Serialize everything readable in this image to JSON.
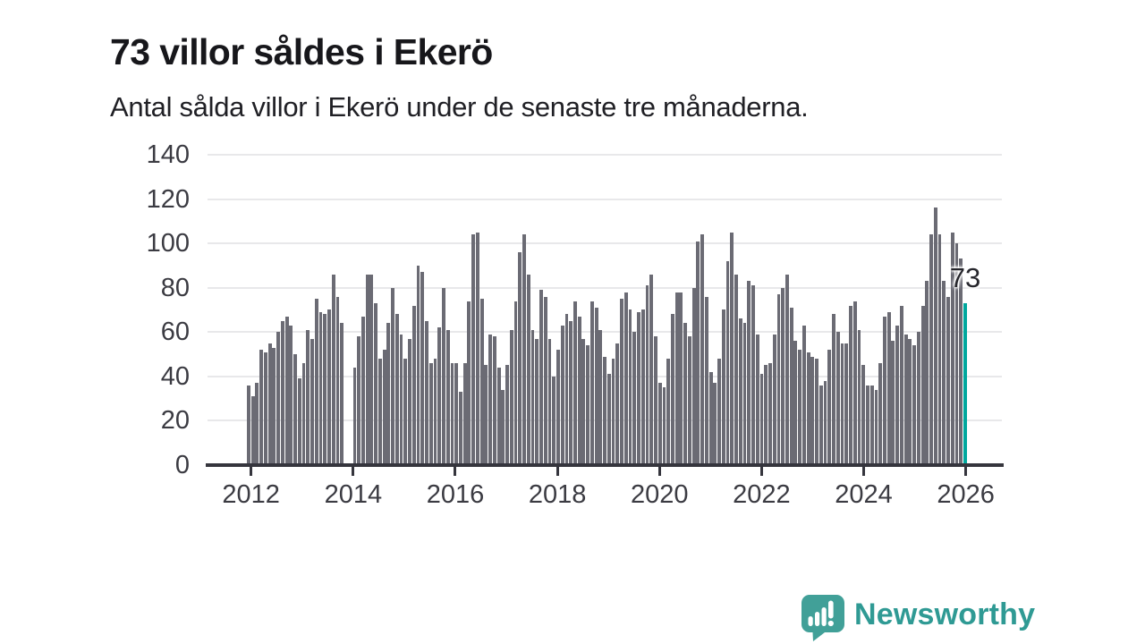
{
  "header": {
    "title": "73 villor såldes i Ekerö",
    "subtitle": "Antal sålda villor i Ekerö under de senaste tre månaderna."
  },
  "chart_data": {
    "type": "bar",
    "title": "73 villor såldes i Ekerö",
    "subtitle": "Antal sålda villor i Ekerö under de senaste tre månaderna.",
    "x_frequency": "monthly",
    "x_range_years": [
      2012,
      2026
    ],
    "values": [
      36,
      31,
      37,
      52,
      51,
      55,
      53,
      60,
      65,
      67,
      63,
      50,
      39,
      46,
      61,
      57,
      75,
      69,
      68,
      70,
      86,
      76,
      64,
      0,
      0,
      44,
      58,
      67,
      86,
      86,
      73,
      48,
      52,
      64,
      80,
      68,
      59,
      48,
      57,
      72,
      90,
      87,
      65,
      46,
      48,
      62,
      80,
      61,
      46,
      46,
      33,
      46,
      74,
      104,
      105,
      75,
      45,
      59,
      58,
      44,
      34,
      45,
      61,
      74,
      96,
      104,
      86,
      61,
      57,
      79,
      76,
      57,
      40,
      52,
      63,
      68,
      65,
      74,
      67,
      57,
      54,
      74,
      71,
      61,
      49,
      41,
      48,
      55,
      75,
      78,
      70,
      60,
      69,
      70,
      81,
      86,
      58,
      37,
      35,
      48,
      68,
      78,
      78,
      64,
      58,
      80,
      101,
      104,
      76,
      42,
      37,
      48,
      70,
      92,
      105,
      86,
      66,
      64,
      83,
      81,
      59,
      41,
      45,
      46,
      59,
      77,
      80,
      86,
      71,
      56,
      52,
      63,
      51,
      49,
      48,
      36,
      38,
      52,
      68,
      60,
      55,
      55,
      72,
      74,
      61,
      45,
      36,
      36,
      34,
      46,
      67,
      69,
      56,
      63,
      72,
      59,
      57,
      54,
      60,
      72,
      83,
      104,
      116,
      104,
      83,
      76,
      105,
      100,
      93,
      73
    ],
    "highlight_last_value": 73,
    "annotation": {
      "text": "73"
    },
    "yticks": [
      0,
      20,
      40,
      60,
      80,
      100,
      120,
      140
    ],
    "ylim": [
      0,
      140
    ],
    "xticks": [
      "2012",
      "2014",
      "2016",
      "2018",
      "2020",
      "2022",
      "2024",
      "2026"
    ],
    "grid": true,
    "legend": "none",
    "xlabel": "",
    "ylabel": "",
    "colors": {
      "bar": "#6b6b74",
      "highlight": "#00a79d",
      "grid": "#e8e8ea",
      "axis": "#35353d",
      "tick_label": "#3b3b42",
      "title": "#17171b"
    }
  },
  "branding": {
    "name": "Newsworthy",
    "logo_color": "#41a098",
    "wordmark_color": "#2f9a94"
  }
}
